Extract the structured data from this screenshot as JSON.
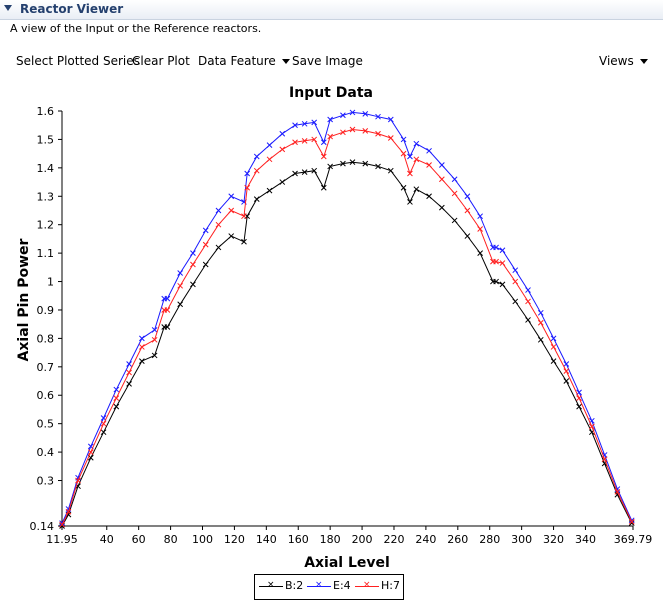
{
  "panel": {
    "title": "Reactor Viewer",
    "description": "A view of the Input or the Reference reactors."
  },
  "toolbar": {
    "select_series": "Select Plotted Series",
    "clear_plot": "Clear Plot",
    "data_feature": "Data Feature",
    "save_image": "Save Image",
    "views": "Views"
  },
  "chart_data": {
    "type": "line",
    "title": "Input Data",
    "xlabel": "Axial Level",
    "ylabel": "Axial Pin Power",
    "xlim": [
      11.95,
      369.79
    ],
    "ylim": [
      0.14,
      1.6
    ],
    "x_ticks": [
      "11.95",
      "40",
      "60",
      "80",
      "100",
      "120",
      "140",
      "160",
      "180",
      "200",
      "220",
      "240",
      "260",
      "280",
      "300",
      "320",
      "340",
      "369.79"
    ],
    "x_tick_values": [
      11.95,
      40,
      60,
      80,
      100,
      120,
      140,
      160,
      180,
      200,
      220,
      240,
      260,
      280,
      300,
      320,
      340,
      369.79
    ],
    "y_ticks": [
      "0.14",
      "0.3",
      "0.4",
      "0.5",
      "0.6",
      "0.7",
      "0.8",
      "0.9",
      "1",
      "1.1",
      "1.2",
      "1.3",
      "1.4",
      "1.5",
      "1.6"
    ],
    "y_tick_values": [
      0.14,
      0.3,
      0.4,
      0.5,
      0.6,
      0.7,
      0.8,
      0.9,
      1,
      1.1,
      1.2,
      1.3,
      1.4,
      1.5,
      1.6
    ],
    "x": [
      12,
      16,
      22,
      30,
      38,
      46,
      54,
      62,
      70,
      76,
      78,
      86,
      94,
      102,
      110,
      118,
      126,
      128,
      134,
      142,
      150,
      158,
      164,
      170,
      176,
      180,
      188,
      194,
      202,
      210,
      218,
      226,
      230,
      234,
      242,
      250,
      258,
      266,
      274,
      282,
      284,
      288,
      296,
      304,
      312,
      320,
      328,
      336,
      344,
      352,
      360,
      369
    ],
    "series": [
      {
        "name": "B:2",
        "color": "#000000",
        "values": [
          0.14,
          0.18,
          0.28,
          0.38,
          0.47,
          0.56,
          0.64,
          0.72,
          0.74,
          0.84,
          0.84,
          0.92,
          0.99,
          1.06,
          1.12,
          1.16,
          1.14,
          1.23,
          1.29,
          1.32,
          1.35,
          1.38,
          1.385,
          1.39,
          1.33,
          1.405,
          1.415,
          1.42,
          1.415,
          1.405,
          1.39,
          1.33,
          1.28,
          1.325,
          1.3,
          1.26,
          1.215,
          1.16,
          1.1,
          1.0,
          1.0,
          0.99,
          0.93,
          0.865,
          0.795,
          0.72,
          0.65,
          0.56,
          0.47,
          0.36,
          0.25,
          0.15
        ]
      },
      {
        "name": "E:4",
        "color": "#1a1aff",
        "values": [
          0.15,
          0.2,
          0.31,
          0.42,
          0.52,
          0.62,
          0.71,
          0.8,
          0.83,
          0.94,
          0.94,
          1.03,
          1.1,
          1.18,
          1.25,
          1.3,
          1.28,
          1.38,
          1.44,
          1.48,
          1.52,
          1.55,
          1.555,
          1.56,
          1.49,
          1.57,
          1.585,
          1.595,
          1.59,
          1.58,
          1.57,
          1.5,
          1.44,
          1.485,
          1.46,
          1.41,
          1.36,
          1.3,
          1.23,
          1.12,
          1.12,
          1.11,
          1.04,
          0.97,
          0.89,
          0.8,
          0.71,
          0.61,
          0.51,
          0.39,
          0.27,
          0.16
        ]
      },
      {
        "name": "H:7",
        "color": "#ff2020",
        "values": [
          0.145,
          0.19,
          0.3,
          0.4,
          0.5,
          0.59,
          0.68,
          0.77,
          0.795,
          0.9,
          0.9,
          0.985,
          1.06,
          1.13,
          1.2,
          1.25,
          1.23,
          1.33,
          1.39,
          1.43,
          1.465,
          1.49,
          1.495,
          1.5,
          1.44,
          1.51,
          1.525,
          1.535,
          1.53,
          1.52,
          1.505,
          1.45,
          1.38,
          1.43,
          1.41,
          1.36,
          1.31,
          1.25,
          1.185,
          1.07,
          1.07,
          1.065,
          1.0,
          0.93,
          0.855,
          0.77,
          0.685,
          0.59,
          0.49,
          0.375,
          0.26,
          0.155
        ]
      }
    ],
    "grid": false,
    "legend_position": "bottom-center"
  }
}
